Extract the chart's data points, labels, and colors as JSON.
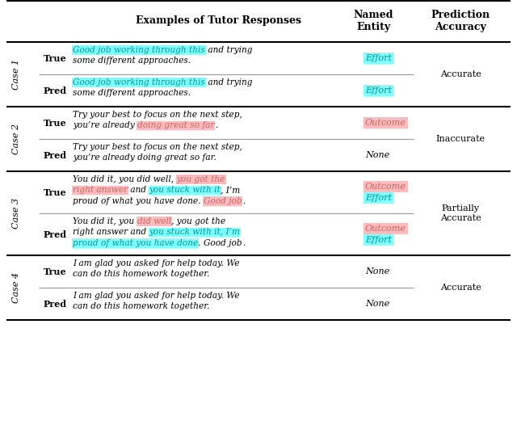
{
  "cyan_bg": "#7FFFFF",
  "pink_bg": "#FFBBBB",
  "cyan_text": "#009999",
  "pink_text": "#CC6666",
  "black": "#000000",
  "gray": "#999999",
  "white": "#FFFFFF",
  "header_text1": "Examples of Tutor Responses",
  "header_text2": "Named\nEntity",
  "header_text3": "Prediction\nAccuracy",
  "cases": [
    {
      "label": "Case 1",
      "rows": [
        {
          "type_label": "True",
          "lines": [
            [
              {
                "t": "Good job working through this",
                "h": "cyan"
              },
              {
                "t": " and trying",
                "h": null
              }
            ],
            [
              {
                "t": "some different approaches.",
                "h": null
              }
            ]
          ],
          "entities": [
            {
              "text": "Effort",
              "color": "cyan"
            }
          ]
        },
        {
          "type_label": "Pred",
          "lines": [
            [
              {
                "t": "Good job working through this",
                "h": "cyan"
              },
              {
                "t": " and trying",
                "h": null
              }
            ],
            [
              {
                "t": "some different approaches.",
                "h": null
              }
            ]
          ],
          "entities": [
            {
              "text": "Effort",
              "color": "cyan"
            }
          ]
        }
      ],
      "accuracy": "Accurate"
    },
    {
      "label": "Case 2",
      "rows": [
        {
          "type_label": "True",
          "lines": [
            [
              {
                "t": "Try your best to focus on the next step,",
                "h": null
              }
            ],
            [
              {
                "t": "you’re already ",
                "h": null
              },
              {
                "t": "doing great so far",
                "h": "pink"
              },
              {
                "t": ".",
                "h": null
              }
            ]
          ],
          "entities": [
            {
              "text": "Outcome",
              "color": "pink"
            }
          ]
        },
        {
          "type_label": "Pred",
          "lines": [
            [
              {
                "t": "Try your best to focus on the next step,",
                "h": null
              }
            ],
            [
              {
                "t": "you’re already doing great so far.",
                "h": null
              }
            ]
          ],
          "entities": [
            {
              "text": "None",
              "color": null
            }
          ]
        }
      ],
      "accuracy": "Inaccurate"
    },
    {
      "label": "Case 3",
      "rows": [
        {
          "type_label": "True",
          "lines": [
            [
              {
                "t": "You did it, you did well, ",
                "h": null
              },
              {
                "t": "you got the",
                "h": "pink"
              }
            ],
            [
              {
                "t": "right answer",
                "h": "pink"
              },
              {
                "t": " and ",
                "h": null
              },
              {
                "t": "you stuck with it",
                "h": "cyan"
              },
              {
                "t": ", I’m",
                "h": null
              }
            ],
            [
              {
                "t": "proud of what you have done. ",
                "h": null
              },
              {
                "t": "Good job",
                "h": "pink"
              },
              {
                "t": ".",
                "h": null
              }
            ]
          ],
          "entities": [
            {
              "text": "Outcome",
              "color": "pink"
            },
            {
              "text": "Effort",
              "color": "cyan"
            }
          ]
        },
        {
          "type_label": "Pred",
          "lines": [
            [
              {
                "t": "You did it, you ",
                "h": null
              },
              {
                "t": "did well",
                "h": "pink"
              },
              {
                "t": ", you got the",
                "h": null
              }
            ],
            [
              {
                "t": "right answer and ",
                "h": null
              },
              {
                "t": "you stuck with it, I’m",
                "h": "cyan"
              }
            ],
            [
              {
                "t": "proud of what you have done",
                "h": "cyan"
              },
              {
                "t": ". ",
                "h": null
              },
              {
                "t": "Good job",
                "h": null
              },
              {
                "t": ".",
                "h": null
              }
            ]
          ],
          "entities": [
            {
              "text": "Outcome",
              "color": "pink"
            },
            {
              "text": "Effort",
              "color": "cyan"
            }
          ]
        }
      ],
      "accuracy": "Partially\nAccurate"
    },
    {
      "label": "Case 4",
      "rows": [
        {
          "type_label": "True",
          "lines": [
            [
              {
                "t": "I am glad you asked for help today. We",
                "h": null
              }
            ],
            [
              {
                "t": "can do this homework together.",
                "h": null
              }
            ]
          ],
          "entities": [
            {
              "text": "None",
              "color": null
            }
          ]
        },
        {
          "type_label": "Pred",
          "lines": [
            [
              {
                "t": "I am glad you asked for help today. We",
                "h": null
              }
            ],
            [
              {
                "t": "can do this homework together.",
                "h": null
              }
            ]
          ],
          "entities": [
            {
              "text": "None",
              "color": null
            }
          ]
        }
      ],
      "accuracy": "Accurate"
    }
  ]
}
